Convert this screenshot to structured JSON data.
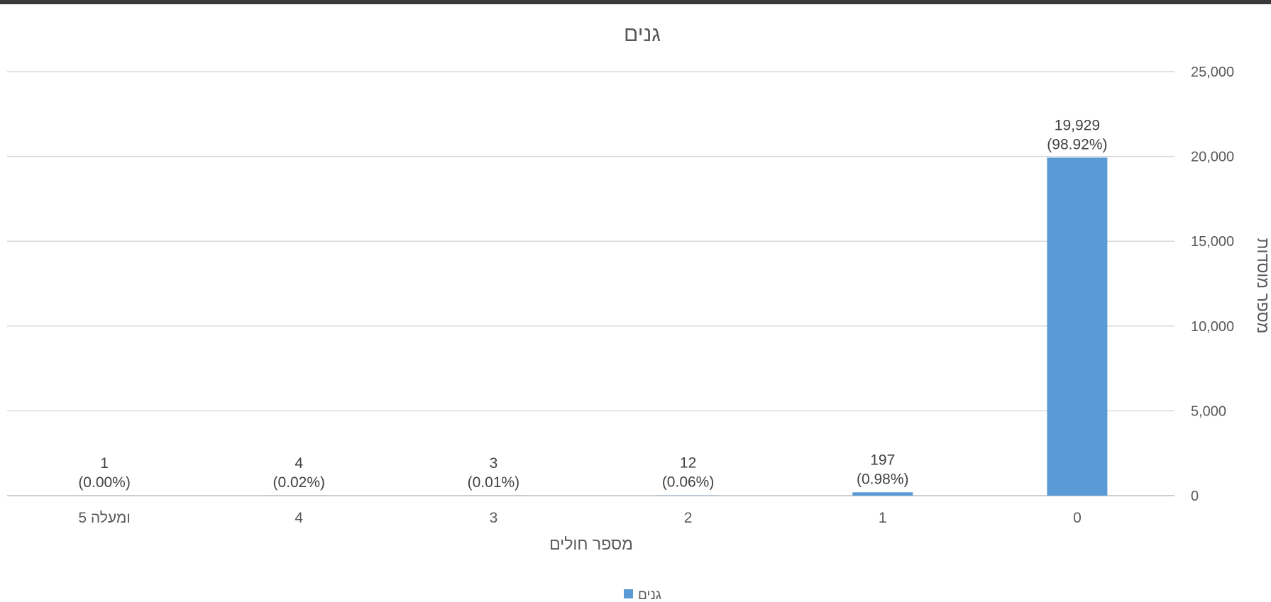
{
  "chart_data": {
    "type": "bar",
    "title": "גנים",
    "xlabel": "מספר חולים",
    "ylabel": "מספר מוסדות",
    "y_axis_side": "right",
    "categories": [
      "0",
      "1",
      "2",
      "3",
      "4",
      "5 ומעלה"
    ],
    "series": [
      {
        "name": "גנים",
        "color": "#5b9bd5",
        "values": [
          19929,
          197,
          12,
          3,
          4,
          1
        ],
        "labels": [
          "19,929",
          "197",
          "12",
          "3",
          "4",
          "1"
        ],
        "percent_labels": [
          "(98.92%)",
          "(0.98%)",
          "(0.06%)",
          "(0.01%)",
          "(0.02%)",
          "(0.00%)"
        ]
      }
    ],
    "ylim": [
      0,
      25000
    ],
    "yticks": [
      0,
      5000,
      10000,
      15000,
      20000,
      25000
    ],
    "ytick_labels": [
      "0",
      "5,000",
      "10,000",
      "15,000",
      "20,000",
      "25,000"
    ],
    "grid": true,
    "legend": "bottom"
  }
}
